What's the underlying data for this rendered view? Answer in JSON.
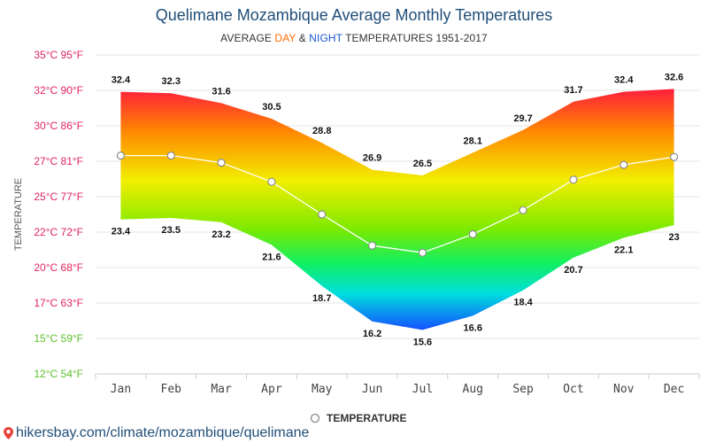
{
  "title": "Quelimane Mozambique Average Monthly Temperatures",
  "subtitle": {
    "prefix": "AVERAGE ",
    "day": "DAY",
    "amp": " & ",
    "night": "NIGHT",
    "suffix": " TEMPERATURES 1951-2017"
  },
  "footer": {
    "url": "hikersbay.com/climate/mozambique/quelimane"
  },
  "colors": {
    "title": "#1f4e79",
    "day": "#ff6a00",
    "night": "#1a56d6",
    "line": "#ffffff",
    "grid": "#e6e6e6",
    "axis_text": "#444444"
  },
  "chart_data": {
    "type": "area",
    "categories": [
      "Jan",
      "Feb",
      "Mar",
      "Apr",
      "May",
      "Jun",
      "Jul",
      "Aug",
      "Sep",
      "Oct",
      "Nov",
      "Dec"
    ],
    "series": [
      {
        "name": "DAY",
        "values": [
          32.4,
          32.3,
          31.6,
          30.5,
          28.8,
          26.9,
          26.5,
          28.1,
          29.7,
          31.7,
          32.4,
          32.6
        ]
      },
      {
        "name": "NIGHT",
        "values": [
          23.4,
          23.5,
          23.2,
          21.6,
          18.7,
          16.2,
          15.6,
          16.6,
          18.4,
          20.7,
          22.1,
          23
        ]
      },
      {
        "name": "TEMPERATURE",
        "values": [
          27.9,
          27.9,
          27.4,
          26.05,
          23.75,
          21.55,
          21.05,
          22.35,
          24.05,
          26.2,
          27.25,
          27.8
        ]
      }
    ],
    "yticks": [
      {
        "value": 35,
        "label": "35°C 95°F",
        "color": "#e0245e"
      },
      {
        "value": 32.5,
        "label": "32°C 90°F",
        "color": "#e0245e"
      },
      {
        "value": 30,
        "label": "30°C 86°F",
        "color": "#e0245e"
      },
      {
        "value": 27.5,
        "label": "27°C 81°F",
        "color": "#e0245e"
      },
      {
        "value": 25,
        "label": "25°C 77°F",
        "color": "#e0245e"
      },
      {
        "value": 22.5,
        "label": "22°C 72°F",
        "color": "#e0245e"
      },
      {
        "value": 20,
        "label": "20°C 68°F",
        "color": "#e0245e"
      },
      {
        "value": 17.5,
        "label": "17°C 63°F",
        "color": "#e0245e"
      },
      {
        "value": 15,
        "label": "15°C 59°F",
        "color": "#5cbf2a"
      },
      {
        "value": 12.5,
        "label": "12°C 54°F",
        "color": "#5cbf2a"
      }
    ],
    "ylabel": "TEMPERATURE",
    "ylim": [
      12.5,
      35
    ],
    "legend": {
      "label": "TEMPERATURE",
      "position": "bottom-center"
    },
    "grid": true
  }
}
